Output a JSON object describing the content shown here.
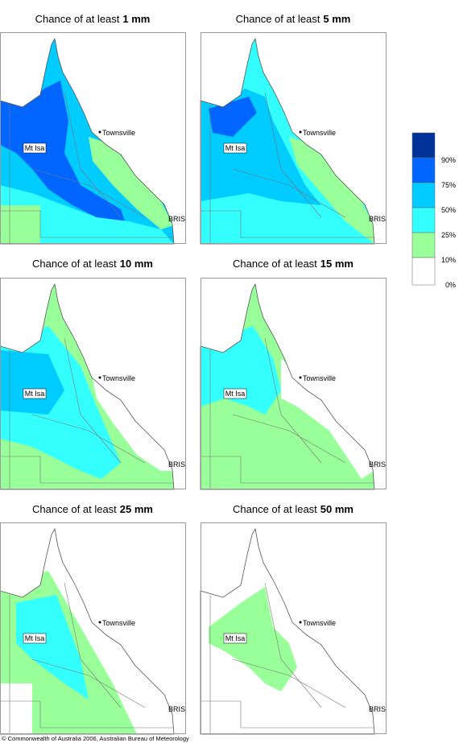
{
  "panels": [
    {
      "prefix": "Chance of at least",
      "amount": "1 mm"
    },
    {
      "prefix": "Chance of at least",
      "amount": "5 mm"
    },
    {
      "prefix": "Chance of at least",
      "amount": "10 mm"
    },
    {
      "prefix": "Chance of at least",
      "amount": "15 mm"
    },
    {
      "prefix": "Chance of at least",
      "amount": "25 mm"
    },
    {
      "prefix": "Chance of at least",
      "amount": "50 mm"
    }
  ],
  "places": {
    "townsville": "Townsville",
    "mt_isa": "Mt Isa",
    "bris": "BRIS"
  },
  "legend": [
    "90%",
    "75%",
    "50%",
    "25%",
    "10%",
    "0%"
  ],
  "footer": "© Commonwealth of Australia 2006, Australian Bureau of Meteorology"
}
